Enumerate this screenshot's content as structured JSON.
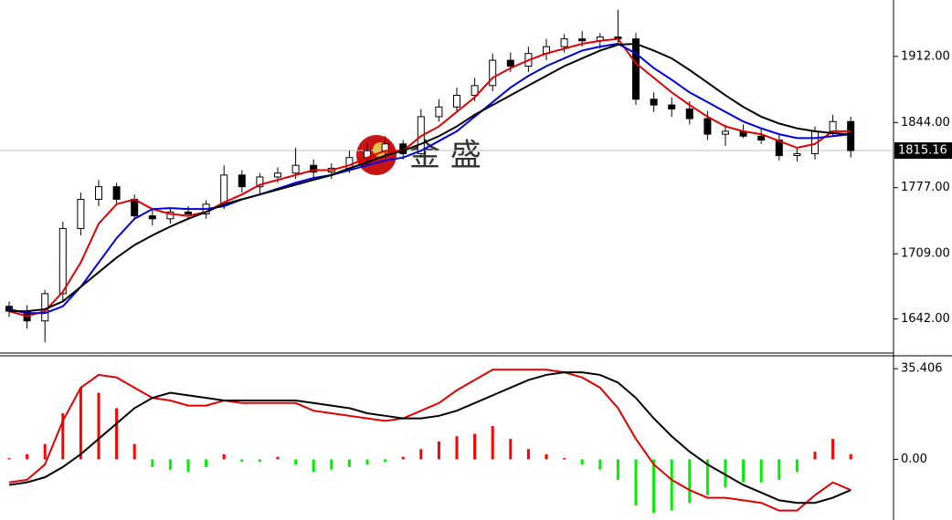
{
  "chart_data": [
    {
      "type": "candlestick",
      "watermark": "金 盛",
      "open": [
        1655,
        1650,
        1640,
        1668,
        1735,
        1765,
        1778,
        1765,
        1748,
        1745,
        1752,
        1750,
        1760,
        1790,
        1778,
        1788,
        1792,
        1800,
        1793,
        1797,
        1808,
        1815,
        1822,
        1812,
        1850,
        1860,
        1872,
        1882,
        1908,
        1902,
        1915,
        1922,
        1930,
        1928,
        1932,
        1930,
        1868,
        1862,
        1858,
        1848,
        1832,
        1835,
        1830,
        1826,
        1810,
        1812,
        1835,
        1845
      ],
      "high": [
        1660,
        1656,
        1672,
        1742,
        1772,
        1785,
        1782,
        1770,
        1754,
        1756,
        1758,
        1764,
        1800,
        1795,
        1792,
        1798,
        1818,
        1806,
        1802,
        1815,
        1822,
        1830,
        1826,
        1858,
        1868,
        1880,
        1890,
        1915,
        1916,
        1922,
        1930,
        1935,
        1938,
        1936,
        1960,
        1936,
        1875,
        1870,
        1866,
        1856,
        1842,
        1842,
        1838,
        1832,
        1818,
        1840,
        1852,
        1850
      ],
      "low": [
        1644,
        1632,
        1618,
        1660,
        1728,
        1758,
        1760,
        1744,
        1738,
        1740,
        1744,
        1745,
        1755,
        1772,
        1770,
        1782,
        1786,
        1788,
        1786,
        1792,
        1800,
        1808,
        1806,
        1808,
        1845,
        1855,
        1866,
        1876,
        1896,
        1896,
        1908,
        1916,
        1922,
        1920,
        1926,
        1862,
        1855,
        1850,
        1842,
        1826,
        1820,
        1828,
        1822,
        1805,
        1804,
        1806,
        1830,
        1808
      ],
      "close": [
        1650,
        1640,
        1668,
        1735,
        1765,
        1778,
        1765,
        1748,
        1745,
        1752,
        1750,
        1760,
        1790,
        1778,
        1788,
        1792,
        1800,
        1793,
        1797,
        1808,
        1815,
        1822,
        1812,
        1850,
        1860,
        1872,
        1882,
        1908,
        1902,
        1915,
        1922,
        1930,
        1928,
        1932,
        1930,
        1868,
        1862,
        1858,
        1848,
        1832,
        1835,
        1830,
        1826,
        1810,
        1812,
        1835,
        1845,
        1815.16
      ],
      "up_color": "#ffffff",
      "down_color": "#000000",
      "series": [
        {
          "color": "#e00000",
          "values": [
            1650,
            1645,
            1650,
            1670,
            1700,
            1740,
            1760,
            1765,
            1755,
            1750,
            1748,
            1752,
            1762,
            1770,
            1780,
            1785,
            1790,
            1795,
            1795,
            1800,
            1808,
            1815,
            1815,
            1830,
            1840,
            1855,
            1870,
            1890,
            1900,
            1908,
            1915,
            1920,
            1925,
            1928,
            1930,
            1905,
            1890,
            1875,
            1862,
            1850,
            1840,
            1835,
            1832,
            1825,
            1818,
            1822,
            1835,
            1835
          ]
        },
        {
          "color": "#0000dd",
          "values": [
            1652,
            1648,
            1648,
            1655,
            1675,
            1700,
            1725,
            1745,
            1755,
            1756,
            1755,
            1755,
            1758,
            1765,
            1770,
            1776,
            1782,
            1787,
            1790,
            1795,
            1800,
            1805,
            1808,
            1815,
            1825,
            1835,
            1850,
            1865,
            1880,
            1892,
            1902,
            1910,
            1918,
            1922,
            1925,
            1915,
            1900,
            1888,
            1875,
            1865,
            1855,
            1845,
            1838,
            1832,
            1828,
            1828,
            1830,
            1832
          ]
        },
        {
          "color": "#000000",
          "values": [
            1650,
            1650,
            1652,
            1660,
            1675,
            1690,
            1705,
            1718,
            1728,
            1737,
            1745,
            1752,
            1760,
            1765,
            1770,
            1775,
            1780,
            1785,
            1790,
            1797,
            1803,
            1810,
            1815,
            1822,
            1830,
            1840,
            1852,
            1862,
            1872,
            1882,
            1892,
            1902,
            1910,
            1918,
            1924,
            1925,
            1918,
            1910,
            1898,
            1885,
            1872,
            1860,
            1850,
            1843,
            1838,
            1835,
            1833,
            1832
          ]
        }
      ],
      "ylim": [
        1606,
        1970
      ],
      "yticks": [
        {
          "value": 1912,
          "label": "1912.00"
        },
        {
          "value": 1844,
          "label": "1844.00"
        },
        {
          "value": 1777,
          "label": "1777.00"
        },
        {
          "value": 1709,
          "label": "1709.00"
        },
        {
          "value": 1642,
          "label": "1642.00"
        }
      ],
      "current_price": 1815.16
    },
    {
      "type": "macd",
      "histogram": [
        0.5,
        2,
        6,
        18,
        28,
        26,
        20,
        6,
        -3,
        -4,
        -5,
        -3,
        2,
        -1,
        -1,
        1,
        -2,
        -5,
        -4,
        -3,
        -2,
        -1,
        1,
        4,
        7,
        9,
        10,
        13,
        8,
        4,
        2,
        0.5,
        -2,
        -4,
        -8,
        -18,
        -21,
        -20,
        -17,
        -14,
        -11,
        -9,
        -9,
        -8,
        -5,
        3,
        8,
        2
      ],
      "up_color": "#ff0000",
      "down_color": "#00ee00",
      "series": [
        {
          "color": "#e00000",
          "values": [
            -9,
            -8,
            -2,
            15,
            28,
            33,
            32,
            28,
            24,
            23,
            21,
            21,
            23,
            22,
            22,
            22,
            22,
            19,
            18,
            17,
            16,
            15,
            16,
            19,
            22,
            27,
            31,
            35,
            35,
            35,
            35,
            34,
            32,
            28,
            20,
            8,
            -2,
            -8,
            -12,
            -15,
            -15,
            -16,
            -17,
            -20,
            -20,
            -14,
            -9,
            -12
          ]
        },
        {
          "color": "#000000",
          "values": [
            -10,
            -9,
            -7,
            -3,
            2,
            8,
            14,
            20,
            24,
            26,
            25,
            24,
            23,
            23,
            23,
            23,
            23,
            22,
            21,
            20,
            18,
            17,
            16,
            16,
            17,
            19,
            22,
            25,
            28,
            31,
            33,
            34,
            34,
            33,
            30,
            24,
            16,
            9,
            3,
            -2,
            -6,
            -10,
            -13,
            -16,
            -17,
            -17,
            -15,
            -12
          ]
        }
      ],
      "ylim": [
        -23.7,
        40.1
      ],
      "yticks": [
        35.406,
        {
          "value": 0,
          "label": "0.00"
        }
      ]
    }
  ]
}
